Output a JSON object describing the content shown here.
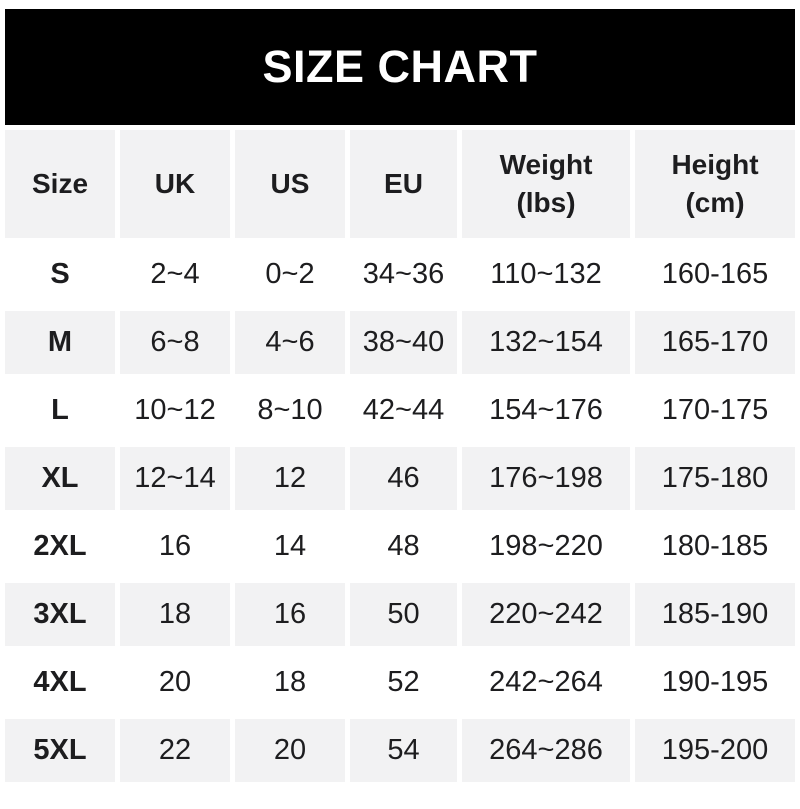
{
  "banner": {
    "title": "SIZE CHART"
  },
  "chart_data": {
    "type": "table",
    "title": "SIZE CHART",
    "columns": [
      "Size",
      "UK",
      "US",
      "EU",
      "Weight\n(lbs)",
      "Height\n(cm)"
    ],
    "column_keys": [
      "size",
      "uk",
      "us",
      "eu",
      "weight-lbs",
      "height-cm"
    ],
    "rows": [
      [
        "S",
        "2~4",
        "0~2",
        "34~36",
        "110~132",
        "160-165"
      ],
      [
        "M",
        "6~8",
        "4~6",
        "38~40",
        "132~154",
        "165-170"
      ],
      [
        "L",
        "10~12",
        "8~10",
        "42~44",
        "154~176",
        "170-175"
      ],
      [
        "XL",
        "12~14",
        "12",
        "46",
        "176~198",
        "175-180"
      ],
      [
        "2XL",
        "16",
        "14",
        "48",
        "198~220",
        "180-185"
      ],
      [
        "3XL",
        "18",
        "16",
        "50",
        "220~242",
        "185-190"
      ],
      [
        "4XL",
        "20",
        "18",
        "52",
        "242~264",
        "190-195"
      ],
      [
        "5XL",
        "22",
        "20",
        "54",
        "264~286",
        "195-200"
      ]
    ],
    "layout": {
      "row_striping": "header and even data rows shaded",
      "range_separator_weight": "~",
      "range_separator_height": "-"
    }
  },
  "theme": {
    "banner_bg": "#000000",
    "banner_text": "#ffffff",
    "stripe_bg": "#f2f2f3",
    "row_bg": "#ffffff",
    "text_color": "#1d1d1f",
    "page_bg": "#ffffff"
  }
}
